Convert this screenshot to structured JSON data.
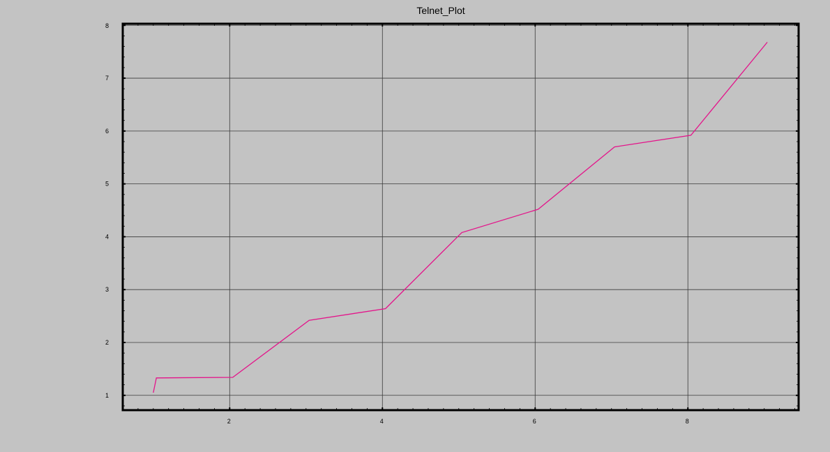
{
  "chart_data": {
    "type": "line",
    "title": "Telnet_Plot",
    "xlabel": "",
    "ylabel": "",
    "xlim": [
      0.6,
      9.45
    ],
    "ylim": [
      0.72,
      8.03
    ],
    "grid": true,
    "x_ticks": [
      2,
      4,
      6,
      8
    ],
    "y_ticks": [
      1,
      2,
      3,
      4,
      5,
      6,
      7,
      8
    ],
    "x_tick_labels": [
      "2",
      "4",
      "6",
      "8"
    ],
    "y_tick_labels": [
      "1",
      "2",
      "3",
      "4",
      "5",
      "6",
      "7",
      "8"
    ],
    "series": [
      {
        "color": "#e4138a",
        "x": [
          1.0,
          1.04,
          2.04,
          3.04,
          4.04,
          5.04,
          6.04,
          7.04,
          8.04,
          9.04
        ],
        "y": [
          1.05,
          1.33,
          1.34,
          2.42,
          2.64,
          4.08,
          4.52,
          5.7,
          5.92,
          7.68
        ]
      }
    ]
  }
}
